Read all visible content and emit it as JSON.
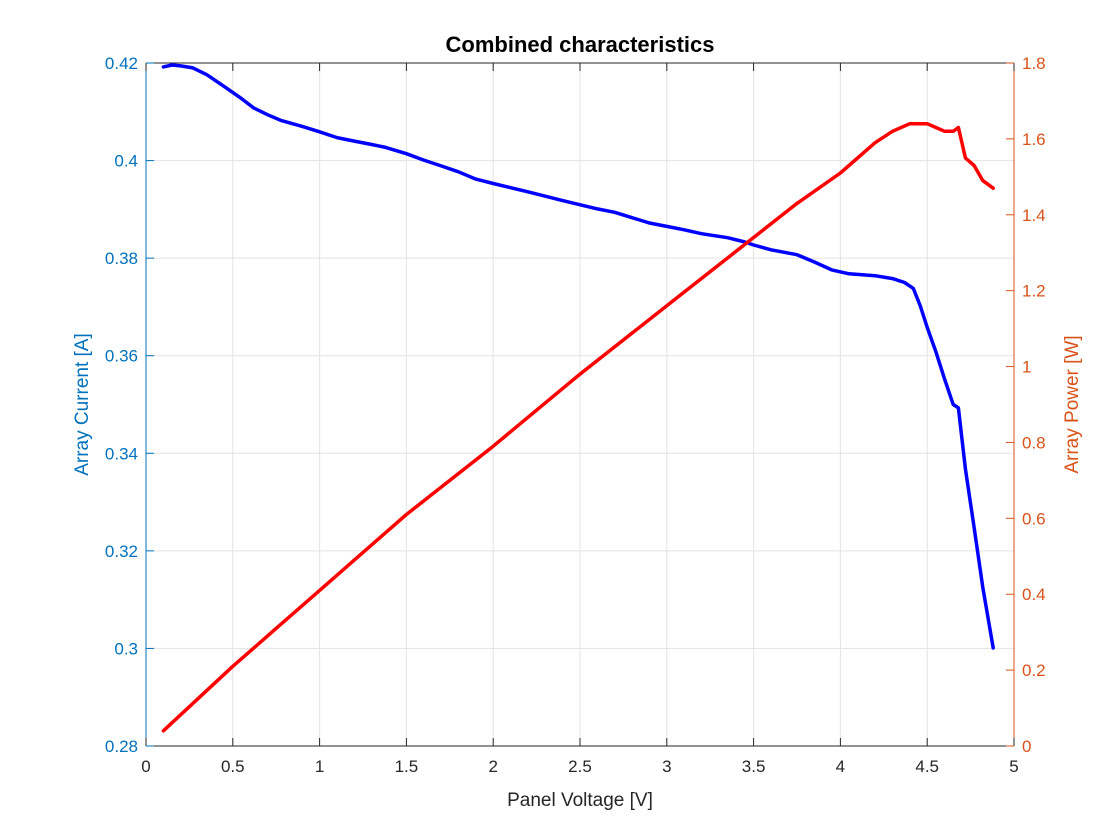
{
  "chart_data": {
    "type": "line",
    "title": "Combined characteristics",
    "xlabel": "Panel Voltage [V]",
    "ylabel_left": "Array Current [A]",
    "ylabel_right": "Array Power [W]",
    "xlim": [
      0,
      5
    ],
    "ylim_left": [
      0.28,
      0.42
    ],
    "ylim_right": [
      0,
      1.8
    ],
    "grid": true,
    "x_ticks": [
      "0",
      "0.5",
      "1",
      "1.5",
      "2",
      "2.5",
      "3",
      "3.5",
      "4",
      "4.5",
      "5"
    ],
    "y_ticks_left": [
      "0.28",
      "0.3",
      "0.32",
      "0.34",
      "0.36",
      "0.38",
      "0.4",
      "0.42"
    ],
    "y_ticks_right": [
      "0",
      "0.2",
      "0.4",
      "0.6",
      "0.8",
      "1",
      "1.2",
      "1.4",
      "1.6",
      "1.8"
    ],
    "colors": {
      "left_axis": "#0072BD",
      "right_axis": "#D95319",
      "current_line": "#0000FF",
      "power_line": "#FF0000",
      "grid": "#E3E3E3",
      "title": "#000000"
    },
    "series": [
      {
        "axis": "left",
        "x": [
          0.1,
          0.15,
          0.2,
          0.27,
          0.35,
          0.45,
          0.55,
          0.62,
          0.7,
          0.78,
          0.9,
          1.0,
          1.1,
          1.2,
          1.3,
          1.38,
          1.5,
          1.6,
          1.7,
          1.8,
          1.9,
          2.0,
          2.2,
          2.4,
          2.6,
          2.7,
          2.8,
          2.9,
          3.0,
          3.1,
          3.2,
          3.35,
          3.45,
          3.5,
          3.6,
          3.75,
          3.85,
          3.95,
          4.05,
          4.2,
          4.3,
          4.37,
          4.42,
          4.46,
          4.5,
          4.55,
          4.6,
          4.65,
          4.68,
          4.72,
          4.77,
          4.82,
          4.88
        ],
        "y": [
          0.4192,
          0.4196,
          0.4194,
          0.419,
          0.4176,
          0.4152,
          0.4127,
          0.4108,
          0.4094,
          0.4082,
          0.407,
          0.4059,
          0.4047,
          0.404,
          0.4033,
          0.4027,
          0.4014,
          0.4001,
          0.3989,
          0.3977,
          0.3962,
          0.3953,
          0.3936,
          0.3918,
          0.3901,
          0.3894,
          0.3883,
          0.3872,
          0.3865,
          0.3858,
          0.385,
          0.3842,
          0.3833,
          0.3827,
          0.3817,
          0.3807,
          0.3792,
          0.3776,
          0.3768,
          0.3764,
          0.3758,
          0.375,
          0.3738,
          0.3702,
          0.3658,
          0.3608,
          0.3552,
          0.35,
          0.3493,
          0.3368,
          0.3248,
          0.3125,
          0.3001
        ]
      },
      {
        "axis": "right",
        "x": [
          0.1,
          0.5,
          1.0,
          1.5,
          2.0,
          2.5,
          3.0,
          3.5,
          3.75,
          4.0,
          4.2,
          4.3,
          4.4,
          4.45,
          4.5,
          4.55,
          4.6,
          4.63,
          4.65,
          4.68,
          4.72,
          4.77,
          4.82,
          4.88
        ],
        "y": [
          0.04,
          0.21,
          0.41,
          0.61,
          0.79,
          0.98,
          1.16,
          1.34,
          1.43,
          1.51,
          1.59,
          1.62,
          1.64,
          1.64,
          1.64,
          1.63,
          1.62,
          1.62,
          1.62,
          1.63,
          1.55,
          1.53,
          1.49,
          1.47
        ]
      }
    ]
  }
}
